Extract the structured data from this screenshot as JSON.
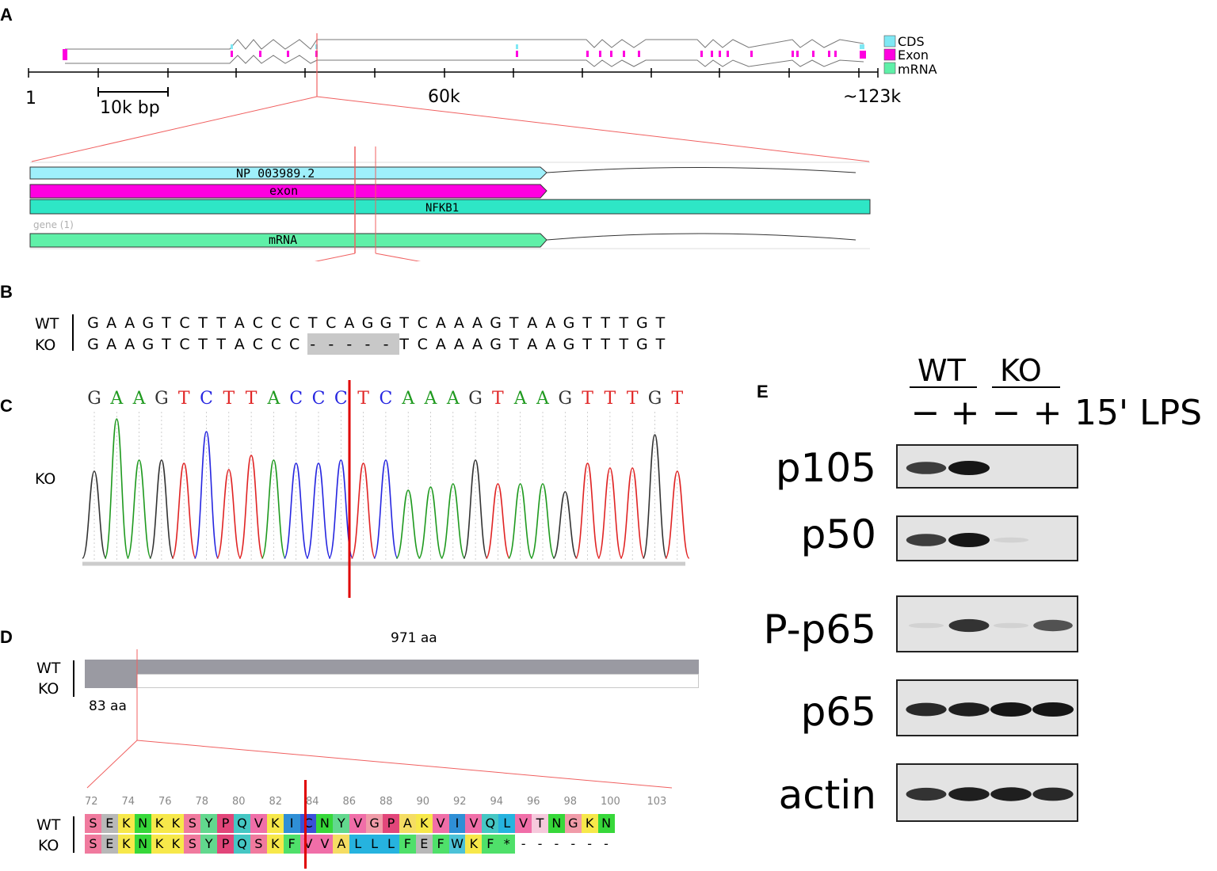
{
  "panels": {
    "a": "A",
    "b": "B",
    "c": "C",
    "d": "D",
    "e": "E"
  },
  "panel_a": {
    "legend": [
      {
        "label": "CDS",
        "color": "#7fe8f4"
      },
      {
        "label": "Exon",
        "color": "#ff00e0"
      },
      {
        "label": "mRNA",
        "color": "#5ff0a8"
      }
    ],
    "axis_start": "1",
    "axis_mid": "60k",
    "axis_end": "~123k",
    "scale_bar": "10k bp",
    "track_cds": "NP 003989.2",
    "track_exon": "exon",
    "track_gene": "NFKB1",
    "gene_caption": "gene (1)",
    "track_mrna": "mRNA"
  },
  "panel_b": {
    "wt_label": "WT",
    "ko_label": "KO",
    "wt_seq": [
      "G",
      "A",
      "A",
      "G",
      "T",
      "C",
      "T",
      "T",
      "A",
      "C",
      "C",
      "C",
      "T",
      "C",
      "A",
      "G",
      "G",
      "T",
      "C",
      "A",
      "A",
      "A",
      "G",
      "T",
      "A",
      "A",
      "G",
      "T",
      "T",
      "T",
      "G",
      "T"
    ],
    "ko_seq": [
      "G",
      "A",
      "A",
      "G",
      "T",
      "C",
      "T",
      "T",
      "A",
      "C",
      "C",
      "C",
      "-",
      "-",
      "-",
      "-",
      "-",
      "T",
      "C",
      "A",
      "A",
      "A",
      "G",
      "T",
      "A",
      "A",
      "G",
      "T",
      "T",
      "T",
      "G",
      "T"
    ]
  },
  "panel_c": {
    "label": "KO",
    "bases": [
      "G",
      "A",
      "A",
      "G",
      "T",
      "C",
      "T",
      "T",
      "A",
      "C",
      "C",
      "C",
      "T",
      "C",
      "A",
      "A",
      "A",
      "G",
      "T",
      "A",
      "A",
      "G",
      "T",
      "T",
      "T",
      "G",
      "T"
    ],
    "base_colors": {
      "A": "#1f9a1f",
      "C": "#2626e0",
      "G": "#333333",
      "T": "#e02424"
    }
  },
  "panel_d": {
    "length_label": "971 aa",
    "truncated_label": "83 aa",
    "wt_label": "WT",
    "ko_label": "KO",
    "positions": [
      "72",
      "74",
      "76",
      "78",
      "80",
      "82",
      "84",
      "86",
      "88",
      "90",
      "92",
      "94",
      "96",
      "98",
      "100",
      "103"
    ],
    "wt_aa": [
      "S",
      "E",
      "K",
      "N",
      "K",
      "K",
      "S",
      "Y",
      "P",
      "Q",
      "V",
      "K",
      "I",
      "C",
      "N",
      "Y",
      "V",
      "G",
      "P",
      "A",
      "K",
      "V",
      "I",
      "V",
      "Q",
      "L",
      "V",
      "T",
      "N",
      "G",
      "K",
      "N"
    ],
    "ko_aa": [
      "S",
      "E",
      "K",
      "N",
      "K",
      "K",
      "S",
      "Y",
      "P",
      "Q",
      "S",
      "K",
      "F",
      "V",
      "V",
      "A",
      "L",
      "L",
      "L",
      "F",
      "E",
      "F",
      "W",
      "K",
      "F",
      "*",
      "-",
      "-",
      "-",
      "-",
      "-",
      "-"
    ],
    "aa_colors": {
      "S": "#f07a9e",
      "E": "#b8b8b8",
      "K": "#f7e84a",
      "N": "#37d83a",
      "Y": "#62d88e",
      "P": "#e2467a",
      "Q": "#45c7c4",
      "V": "#f06ea8",
      "I": "#2f8fd6",
      "C": "#3a51d8",
      "G": "#f09ba8",
      "A": "#f5dd63",
      "L": "#26b3df",
      "T": "#f6c9dc",
      "F": "#4fe06a",
      "W": "#4cc2d8",
      "*": "#4fe06a",
      "-": "#ffffff"
    }
  },
  "panel_e": {
    "wt_label": "WT",
    "ko_label": "KO",
    "lanes": [
      "−",
      "+",
      "−",
      "+"
    ],
    "treatment": "15' LPS",
    "blots": [
      {
        "label": "p105",
        "bands": [
          0.8,
          1.0,
          0,
          0
        ]
      },
      {
        "label": "p50",
        "bands": [
          0.8,
          1.0,
          0.05,
          0
        ]
      },
      {
        "label": "P-p65",
        "bands": [
          0.05,
          0.85,
          0.05,
          0.7
        ]
      },
      {
        "label": "p65",
        "bands": [
          0.9,
          0.95,
          1.0,
          1.0
        ]
      },
      {
        "label": "actin",
        "bands": [
          0.85,
          0.95,
          0.95,
          0.9
        ]
      }
    ]
  }
}
